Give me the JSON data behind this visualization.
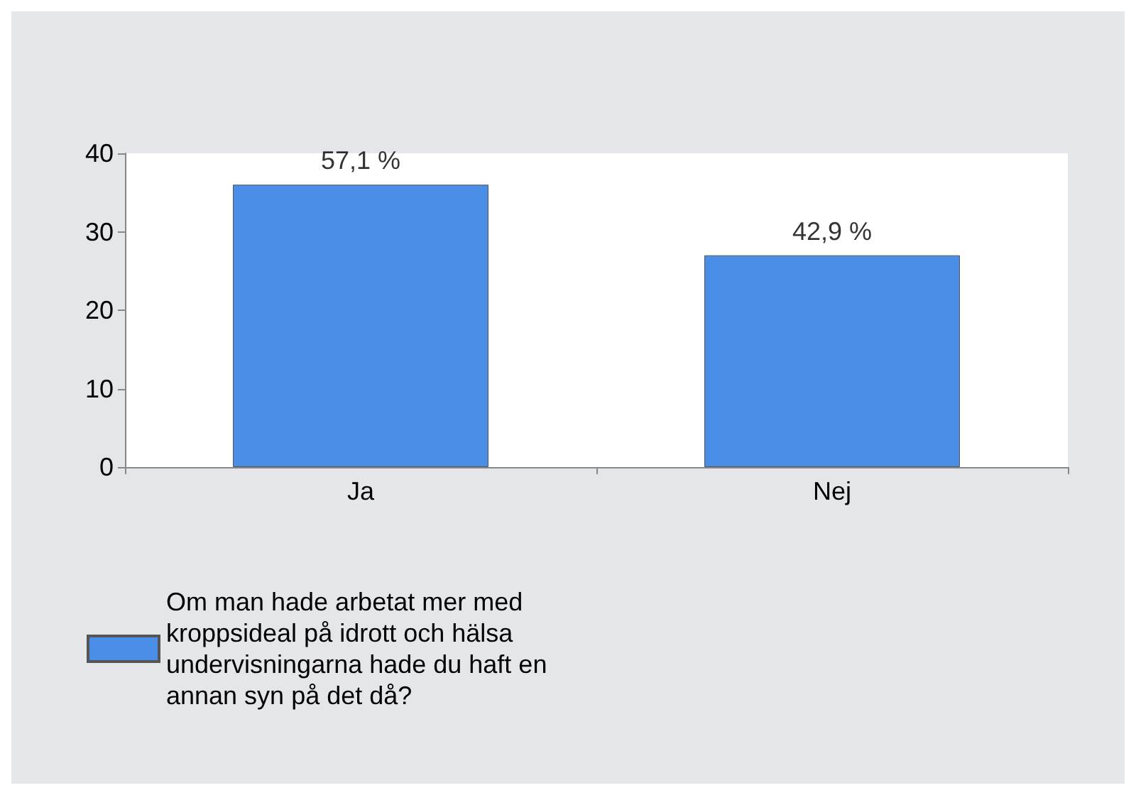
{
  "chart_data": {
    "type": "bar",
    "categories": [
      "Ja",
      "Nej"
    ],
    "series": [
      {
        "name": "Om man hade arbetat mer med kroppsideal på idrott och hälsa undervisningarna hade du haft en annan syn på det då?",
        "color": "#4a8ee8",
        "values": [
          36,
          27
        ]
      }
    ],
    "annotations": [
      {
        "text": "57,1 %",
        "x": "Ja",
        "y": 36
      },
      {
        "text": "42,9 %",
        "x": "Nej",
        "y": 27
      }
    ],
    "ylim": [
      0,
      40
    ],
    "yticks": [
      0,
      10,
      20,
      30,
      40
    ],
    "grid": false,
    "legend": "bottom left"
  }
}
